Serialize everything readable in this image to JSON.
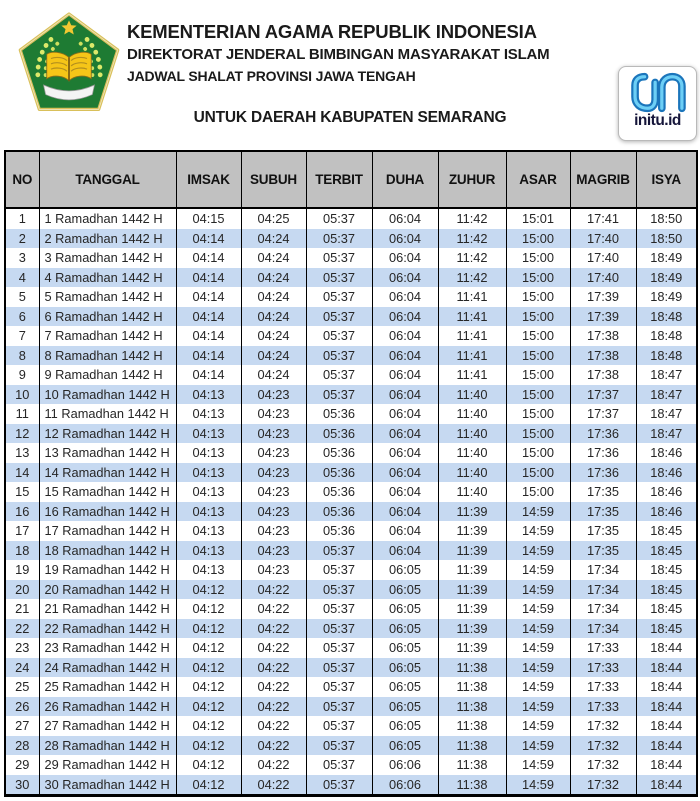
{
  "header": {
    "line1": "KEMENTERIAN AGAMA REPUBLIK INDONESIA",
    "line2": "DIREKTORAT JENDERAL BIMBINGAN MASYARAKAT ISLAM",
    "line3": "JADWAL SHALAT PROVINSI JAWA TENGAH",
    "subtitle": "UNTUK DAERAH KABUPATEN SEMARANG",
    "initu_logo_label": "initu.id"
  },
  "colors": {
    "row_alt_blue": "#c6d9f1",
    "table_header_gray": "#c1c1c1",
    "emblem_green": "#1e7b33",
    "emblem_gold": "#f2c832",
    "initu_blue_dark": "#1b75bb",
    "initu_blue_light": "#6dcff6"
  },
  "table": {
    "columns": [
      "NO",
      "TANGGAL",
      "IMSAK",
      "SUBUH",
      "TERBIT",
      "DUHA",
      "ZUHUR",
      "ASAR",
      "MAGRIB",
      "ISYA"
    ],
    "rows": [
      {
        "no": "1",
        "tanggal": "1 Ramadhan 1442 H",
        "times": [
          "04:15",
          "04:25",
          "05:37",
          "06:04",
          "11:42",
          "15:01",
          "17:41",
          "18:50"
        ]
      },
      {
        "no": "2",
        "tanggal": "2 Ramadhan 1442 H",
        "times": [
          "04:14",
          "04:24",
          "05:37",
          "06:04",
          "11:42",
          "15:00",
          "17:40",
          "18:50"
        ]
      },
      {
        "no": "3",
        "tanggal": "3 Ramadhan 1442 H",
        "times": [
          "04:14",
          "04:24",
          "05:37",
          "06:04",
          "11:42",
          "15:00",
          "17:40",
          "18:49"
        ]
      },
      {
        "no": "4",
        "tanggal": "4 Ramadhan 1442 H",
        "times": [
          "04:14",
          "04:24",
          "05:37",
          "06:04",
          "11:42",
          "15:00",
          "17:40",
          "18:49"
        ]
      },
      {
        "no": "5",
        "tanggal": "5 Ramadhan 1442 H",
        "times": [
          "04:14",
          "04:24",
          "05:37",
          "06:04",
          "11:41",
          "15:00",
          "17:39",
          "18:49"
        ]
      },
      {
        "no": "6",
        "tanggal": "6 Ramadhan 1442 H",
        "times": [
          "04:14",
          "04:24",
          "05:37",
          "06:04",
          "11:41",
          "15:00",
          "17:39",
          "18:48"
        ]
      },
      {
        "no": "7",
        "tanggal": "7 Ramadhan 1442 H",
        "times": [
          "04:14",
          "04:24",
          "05:37",
          "06:04",
          "11:41",
          "15:00",
          "17:38",
          "18:48"
        ]
      },
      {
        "no": "8",
        "tanggal": "8 Ramadhan 1442 H",
        "times": [
          "04:14",
          "04:24",
          "05:37",
          "06:04",
          "11:41",
          "15:00",
          "17:38",
          "18:48"
        ]
      },
      {
        "no": "9",
        "tanggal": "9 Ramadhan 1442 H",
        "times": [
          "04:14",
          "04:24",
          "05:37",
          "06:04",
          "11:41",
          "15:00",
          "17:38",
          "18:47"
        ]
      },
      {
        "no": "10",
        "tanggal": "10 Ramadhan 1442 H",
        "times": [
          "04:13",
          "04:23",
          "05:37",
          "06:04",
          "11:40",
          "15:00",
          "17:37",
          "18:47"
        ]
      },
      {
        "no": "11",
        "tanggal": "11 Ramadhan 1442 H",
        "times": [
          "04:13",
          "04:23",
          "05:36",
          "06:04",
          "11:40",
          "15:00",
          "17:37",
          "18:47"
        ]
      },
      {
        "no": "12",
        "tanggal": "12 Ramadhan 1442 H",
        "times": [
          "04:13",
          "04:23",
          "05:36",
          "06:04",
          "11:40",
          "15:00",
          "17:36",
          "18:47"
        ]
      },
      {
        "no": "13",
        "tanggal": "13 Ramadhan 1442 H",
        "times": [
          "04:13",
          "04:23",
          "05:36",
          "06:04",
          "11:40",
          "15:00",
          "17:36",
          "18:46"
        ]
      },
      {
        "no": "14",
        "tanggal": "14 Ramadhan 1442 H",
        "times": [
          "04:13",
          "04:23",
          "05:36",
          "06:04",
          "11:40",
          "15:00",
          "17:36",
          "18:46"
        ]
      },
      {
        "no": "15",
        "tanggal": "15 Ramadhan 1442 H",
        "times": [
          "04:13",
          "04:23",
          "05:36",
          "06:04",
          "11:40",
          "15:00",
          "17:35",
          "18:46"
        ]
      },
      {
        "no": "16",
        "tanggal": "16 Ramadhan 1442 H",
        "times": [
          "04:13",
          "04:23",
          "05:36",
          "06:04",
          "11:39",
          "14:59",
          "17:35",
          "18:46"
        ]
      },
      {
        "no": "17",
        "tanggal": "17 Ramadhan 1442 H",
        "times": [
          "04:13",
          "04:23",
          "05:36",
          "06:04",
          "11:39",
          "14:59",
          "17:35",
          "18:45"
        ]
      },
      {
        "no": "18",
        "tanggal": "18 Ramadhan 1442 H",
        "times": [
          "04:13",
          "04:23",
          "05:37",
          "06:04",
          "11:39",
          "14:59",
          "17:35",
          "18:45"
        ]
      },
      {
        "no": "19",
        "tanggal": "19 Ramadhan 1442 H",
        "times": [
          "04:13",
          "04:23",
          "05:37",
          "06:05",
          "11:39",
          "14:59",
          "17:34",
          "18:45"
        ]
      },
      {
        "no": "20",
        "tanggal": "20 Ramadhan 1442 H",
        "times": [
          "04:12",
          "04:22",
          "05:37",
          "06:05",
          "11:39",
          "14:59",
          "17:34",
          "18:45"
        ]
      },
      {
        "no": "21",
        "tanggal": "21 Ramadhan 1442 H",
        "times": [
          "04:12",
          "04:22",
          "05:37",
          "06:05",
          "11:39",
          "14:59",
          "17:34",
          "18:45"
        ]
      },
      {
        "no": "22",
        "tanggal": "22 Ramadhan 1442 H",
        "times": [
          "04:12",
          "04:22",
          "05:37",
          "06:05",
          "11:39",
          "14:59",
          "17:34",
          "18:45"
        ]
      },
      {
        "no": "23",
        "tanggal": "23 Ramadhan 1442 H",
        "times": [
          "04:12",
          "04:22",
          "05:37",
          "06:05",
          "11:39",
          "14:59",
          "17:33",
          "18:44"
        ]
      },
      {
        "no": "24",
        "tanggal": "24 Ramadhan 1442 H",
        "times": [
          "04:12",
          "04:22",
          "05:37",
          "06:05",
          "11:38",
          "14:59",
          "17:33",
          "18:44"
        ]
      },
      {
        "no": "25",
        "tanggal": "25 Ramadhan 1442 H",
        "times": [
          "04:12",
          "04:22",
          "05:37",
          "06:05",
          "11:38",
          "14:59",
          "17:33",
          "18:44"
        ]
      },
      {
        "no": "26",
        "tanggal": "26 Ramadhan 1442 H",
        "times": [
          "04:12",
          "04:22",
          "05:37",
          "06:05",
          "11:38",
          "14:59",
          "17:33",
          "18:44"
        ]
      },
      {
        "no": "27",
        "tanggal": "27 Ramadhan 1442 H",
        "times": [
          "04:12",
          "04:22",
          "05:37",
          "06:05",
          "11:38",
          "14:59",
          "17:32",
          "18:44"
        ]
      },
      {
        "no": "28",
        "tanggal": "28 Ramadhan 1442 H",
        "times": [
          "04:12",
          "04:22",
          "05:37",
          "06:05",
          "11:38",
          "14:59",
          "17:32",
          "18:44"
        ]
      },
      {
        "no": "29",
        "tanggal": "29 Ramadhan 1442 H",
        "times": [
          "04:12",
          "04:22",
          "05:37",
          "06:06",
          "11:38",
          "14:59",
          "17:32",
          "18:44"
        ]
      },
      {
        "no": "30",
        "tanggal": "30 Ramadhan 1442 H",
        "times": [
          "04:12",
          "04:22",
          "05:37",
          "06:06",
          "11:38",
          "14:59",
          "17:32",
          "18:44"
        ]
      }
    ]
  }
}
